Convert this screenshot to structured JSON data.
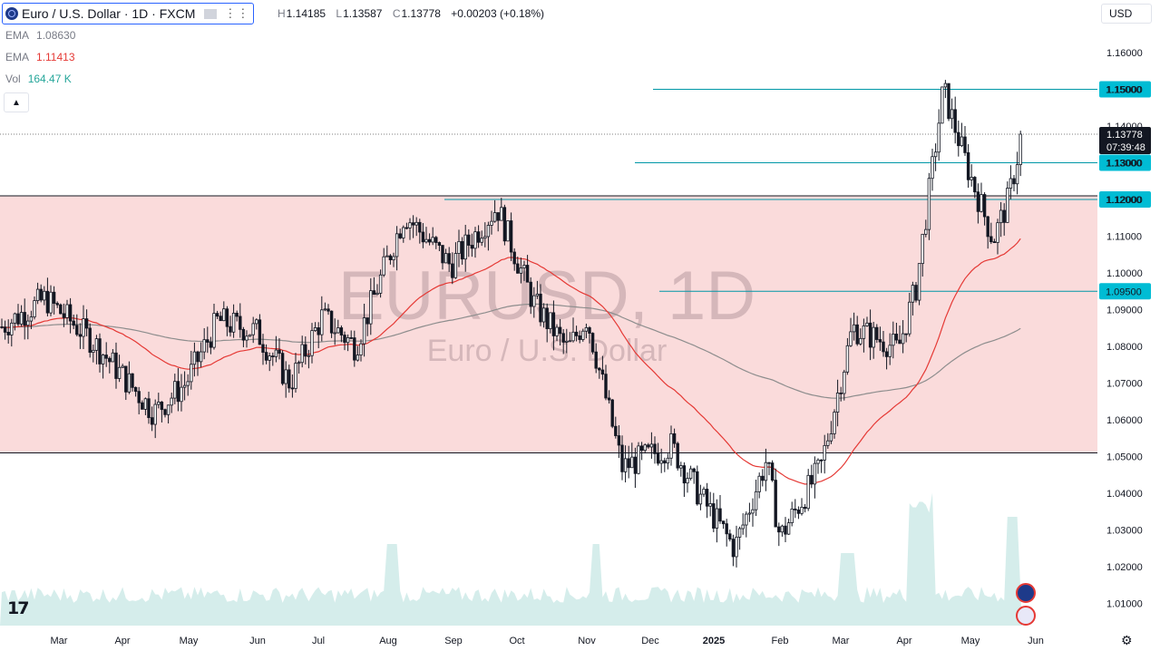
{
  "header": {
    "symbol_title": "Euro / U.S. Dollar · 1D · FXCM",
    "ohlc": [
      {
        "key": "H",
        "value": "1.14185"
      },
      {
        "key": "L",
        "value": "1.13587"
      },
      {
        "key": "C",
        "value": "1.13778"
      },
      {
        "key": "",
        "value": "+0.00203 (+0.18%)"
      }
    ]
  },
  "indicators": [
    {
      "name": "EMA",
      "value": "1.08630",
      "color": "#787b86"
    },
    {
      "name": "EMA",
      "value": "1.11413",
      "color": "#e53935"
    },
    {
      "name": "Vol",
      "value": "164.47 K",
      "color": "#26a69a"
    }
  ],
  "currency_button": "USD",
  "watermark": {
    "symbol": "EURUSD, 1D",
    "name": "Euro / U.S. Dollar"
  },
  "colors": {
    "up": "#26a69a",
    "down": "#131722",
    "ema_fast": "#e53935",
    "ema_slow": "#8d8d8d",
    "level": "#0097a7",
    "zone": "#fadbdb",
    "vol_up": "#b2dfdb",
    "vol_down": "#f8bbbb"
  },
  "chart_data": {
    "type": "candlestick",
    "title": "Euro / U.S. Dollar · 1D · FXCM",
    "ylim": [
      1.0,
      1.17
    ],
    "y_ticks": [
      "1.16000",
      "1.15000",
      "1.14000",
      "1.13000",
      "1.12000",
      "1.11000",
      "1.10000",
      "1.09000",
      "1.08000",
      "1.07000",
      "1.06000",
      "1.05000",
      "1.04000",
      "1.03000",
      "1.02000",
      "1.01000"
    ],
    "x_ticks": [
      "Mar",
      "Apr",
      "May",
      "Jun",
      "Jul",
      "Aug",
      "Sep",
      "Oct",
      "Nov",
      "Dec",
      "2025",
      "Feb",
      "Mar",
      "Apr",
      "May",
      "Jun"
    ],
    "current_price": {
      "value": 1.13778,
      "label": "1.13778",
      "countdown": "07:39:48"
    },
    "horizontal_levels": [
      {
        "value": 1.15,
        "label": "1.15000"
      },
      {
        "value": 1.13,
        "label": "1.13000"
      },
      {
        "value": 1.12,
        "label": "1.12000"
      },
      {
        "value": 1.095,
        "label": "1.09500"
      }
    ],
    "zone": {
      "top": 1.121,
      "bottom": 1.051
    },
    "close_path": [
      {
        "date": "Feb 15",
        "close": 1.085
      },
      {
        "date": "Mar 10",
        "close": 1.093
      },
      {
        "date": "Mar 25",
        "close": 1.082
      },
      {
        "date": "Apr 16",
        "close": 1.062
      },
      {
        "date": "May 1",
        "close": 1.07
      },
      {
        "date": "May 20",
        "close": 1.087
      },
      {
        "date": "Jun 5",
        "close": 1.084
      },
      {
        "date": "Jun 25",
        "close": 1.07
      },
      {
        "date": "Jul 15",
        "close": 1.088
      },
      {
        "date": "Jul 31",
        "close": 1.08
      },
      {
        "date": "Aug 20",
        "close": 1.116
      },
      {
        "date": "Sep 5",
        "close": 1.102
      },
      {
        "date": "Sep 25",
        "close": 1.118
      },
      {
        "date": "Oct 10",
        "close": 1.092
      },
      {
        "date": "Oct 25",
        "close": 1.079
      },
      {
        "date": "Nov 1",
        "close": 1.088
      },
      {
        "date": "Nov 22",
        "close": 1.047
      },
      {
        "date": "Dec 10",
        "close": 1.053
      },
      {
        "date": "Dec 25",
        "close": 1.04
      },
      {
        "date": "Jan 10",
        "close": 1.025
      },
      {
        "date": "Jan 25",
        "close": 1.049
      },
      {
        "date": "Feb 3",
        "close": 1.028
      },
      {
        "date": "Feb 26",
        "close": 1.047
      },
      {
        "date": "Mar 10",
        "close": 1.085
      },
      {
        "date": "Mar 25",
        "close": 1.081
      },
      {
        "date": "Apr 2",
        "close": 1.079
      },
      {
        "date": "Apr 10",
        "close": 1.096
      },
      {
        "date": "Apr 21",
        "close": 1.15
      },
      {
        "date": "May 1",
        "close": 1.13
      },
      {
        "date": "May 12",
        "close": 1.109
      },
      {
        "date": "May 20",
        "close": 1.12
      },
      {
        "date": "May 26",
        "close": 1.13778
      }
    ],
    "ema_fast": {
      "value": 1.11413
    },
    "ema_slow": {
      "value": 1.0863
    },
    "volume": {
      "last": "164.47 K"
    }
  }
}
